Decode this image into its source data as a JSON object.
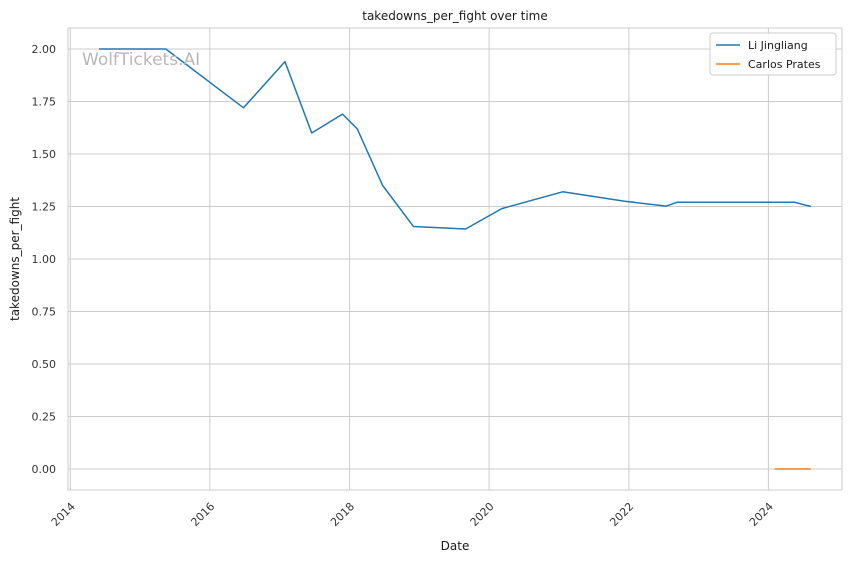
{
  "chart_data": {
    "type": "line",
    "title": "takedowns_per_fight over time",
    "xlabel": "Date",
    "ylabel": "takedowns_per_fight",
    "watermark": "WolfTickets.AI",
    "xlim": [
      "2013-12-20",
      "2025-01-20"
    ],
    "ylim": [
      -0.1,
      2.1
    ],
    "x_ticks": [
      "2014",
      "2016",
      "2018",
      "2020",
      "2022",
      "2024"
    ],
    "y_ticks": [
      "0.00",
      "0.25",
      "0.50",
      "0.75",
      "1.00",
      "1.25",
      "1.50",
      "1.75",
      "2.00"
    ],
    "grid": true,
    "legend_position": "top-right",
    "series": [
      {
        "name": "Li Jingliang",
        "color": "#1f77b4",
        "points": [
          {
            "x": "2014-05-31",
            "y": 2.0
          },
          {
            "x": "2015-05-16",
            "y": 2.0
          },
          {
            "x": "2016-06-25",
            "y": 1.72
          },
          {
            "x": "2017-01-28",
            "y": 1.94
          },
          {
            "x": "2017-06-17",
            "y": 1.6
          },
          {
            "x": "2017-11-25",
            "y": 1.69
          },
          {
            "x": "2018-02-10",
            "y": 1.62
          },
          {
            "x": "2018-06-23",
            "y": 1.35
          },
          {
            "x": "2018-12-01",
            "y": 1.155
          },
          {
            "x": "2019-08-31",
            "y": 1.143
          },
          {
            "x": "2020-03-07",
            "y": 1.24
          },
          {
            "x": "2021-01-20",
            "y": 1.32
          },
          {
            "x": "2021-12-10",
            "y": 1.275
          },
          {
            "x": "2022-07-16",
            "y": 1.252
          },
          {
            "x": "2022-09-10",
            "y": 1.27
          },
          {
            "x": "2024-05-18",
            "y": 1.27
          },
          {
            "x": "2024-08-10",
            "y": 1.25
          }
        ]
      },
      {
        "name": "Carlos Prates",
        "color": "#ff7f0e",
        "points": [
          {
            "x": "2024-02-03",
            "y": 0.0
          },
          {
            "x": "2024-08-10",
            "y": 0.0
          }
        ]
      }
    ]
  }
}
